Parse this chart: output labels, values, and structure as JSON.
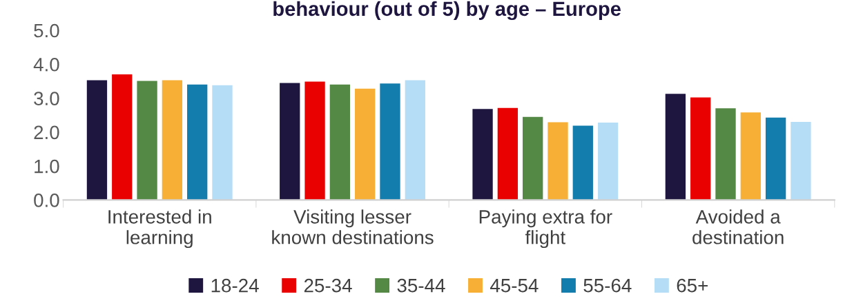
{
  "chart_data": {
    "type": "bar",
    "title": "behaviour (out of 5) by age – Europe",
    "categories": [
      "Interested in\nlearning",
      "Visiting lesser\nknown destinations",
      "Paying extra for\nflight",
      "Avoided a\ndestination"
    ],
    "series": [
      {
        "name": "18-24",
        "color": "#1f1640",
        "values": [
          3.53,
          3.45,
          2.68,
          3.13
        ]
      },
      {
        "name": "25-34",
        "color": "#e90000",
        "values": [
          3.7,
          3.49,
          2.71,
          3.02
        ]
      },
      {
        "name": "35-44",
        "color": "#548845",
        "values": [
          3.51,
          3.4,
          2.45,
          2.7
        ]
      },
      {
        "name": "45-54",
        "color": "#f7b035",
        "values": [
          3.53,
          3.28,
          2.29,
          2.58
        ]
      },
      {
        "name": "55-64",
        "color": "#137dad",
        "values": [
          3.4,
          3.43,
          2.19,
          2.43
        ]
      },
      {
        "name": "65+",
        "color": "#b6ddf6",
        "values": [
          3.38,
          3.53,
          2.28,
          2.3
        ]
      }
    ],
    "ylim": [
      0,
      5
    ],
    "yticks": [
      {
        "value": 0,
        "label": "0.0"
      },
      {
        "value": 1,
        "label": "1.0"
      },
      {
        "value": 2,
        "label": "2.0"
      },
      {
        "value": 3,
        "label": "3.0"
      },
      {
        "value": 4,
        "label": "4.0"
      },
      {
        "value": 5,
        "label": "5.0"
      }
    ],
    "grid": false,
    "legend": "bottom"
  }
}
